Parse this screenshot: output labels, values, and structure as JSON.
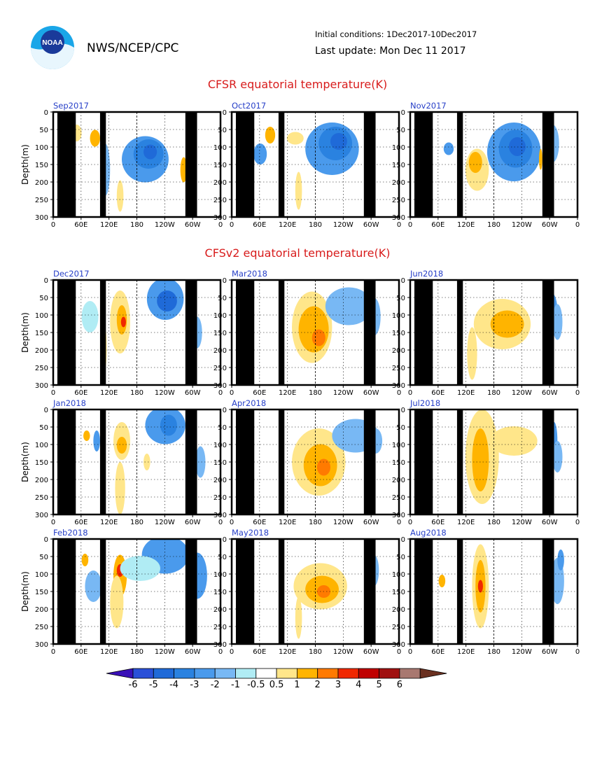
{
  "header": {
    "agency": "NWS/NCEP/CPC",
    "logo_text": "NOAA",
    "initial_conditions": "Initial conditions: 1Dec2017-10Dec2017",
    "last_update": "Last update: Mon Dec 11 2017"
  },
  "chart_data": {
    "type": "heatmap",
    "sections": [
      {
        "title": "CFSR equatorial temperature(K)",
        "panels": [
          "Sep2017",
          "Oct2017",
          "Nov2017"
        ]
      },
      {
        "title": "CFSv2 equatorial temperature(K)",
        "panels": [
          "Dec2017",
          "Mar2018",
          "Jun2018",
          "Jan2018",
          "Apr2018",
          "Jul2018",
          "Feb2018",
          "May2018",
          "Aug2018"
        ]
      }
    ],
    "ylabel": "Depth(m)",
    "ylim": [
      300,
      0
    ],
    "y_ticks": [
      "0",
      "50",
      "100",
      "150",
      "200",
      "250",
      "300"
    ],
    "x_ticks": [
      "0",
      "60E",
      "120E",
      "180",
      "120W",
      "60W",
      "0"
    ],
    "colorbar": {
      "labels": [
        "-6",
        "-5",
        "-4",
        "-3",
        "-2",
        "-1",
        "-0.5",
        "0.5",
        "1",
        "2",
        "3",
        "4",
        "5",
        "6"
      ],
      "colors": [
        "#3a10b8",
        "#2a50d8",
        "#1f6ad8",
        "#2a82e0",
        "#4a9aec",
        "#78b8f4",
        "#b0ecf4",
        "#ffffff",
        "#ffe68a",
        "#ffb400",
        "#ff7a00",
        "#f02800",
        "#c00000",
        "#a01010",
        "#a87870",
        "#6a3020"
      ]
    }
  }
}
